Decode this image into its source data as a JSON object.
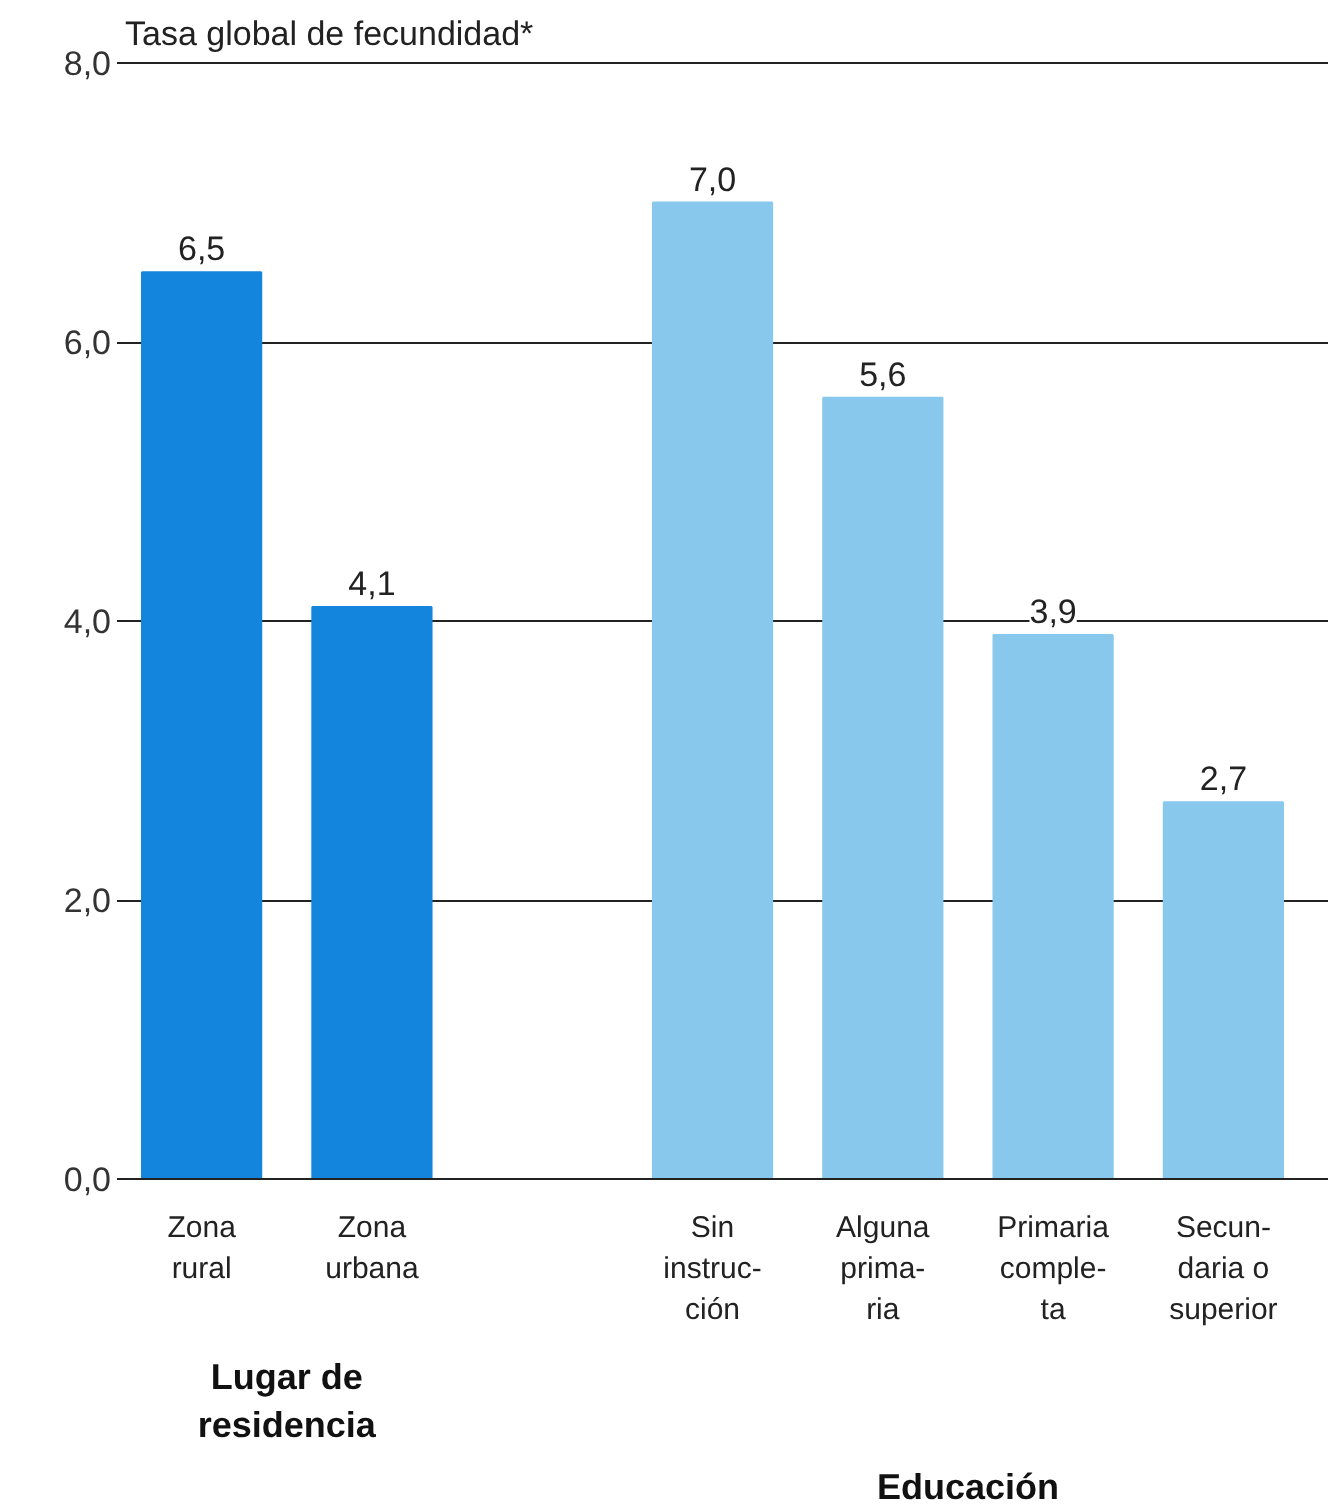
{
  "chart_data": {
    "type": "bar",
    "title": "Tasa global de fecundidad*",
    "categories": [
      "Zona\nrural",
      "Zona\nurbana",
      "Sin\ninstruc-\nción",
      "Alguna\nprima-\nria",
      "Primaria\ncomple-\nta",
      "Secun-\ndaria o\nsuperior"
    ],
    "values": [
      6.5,
      4.1,
      7.0,
      5.6,
      3.9,
      2.7
    ],
    "colors": [
      "#1385dc",
      "#1385dc",
      "#88c8ec",
      "#88c8ec",
      "#88c8ec",
      "#88c8ec"
    ],
    "value_labels": [
      "6,5",
      "4,1",
      "7,0",
      "5,6",
      "3,9",
      "2,7"
    ],
    "ylim": [
      0,
      8
    ],
    "yticks": [
      {
        "value": 0,
        "label": "0,0"
      },
      {
        "value": 2,
        "label": "2,0"
      },
      {
        "value": 4,
        "label": "4,0"
      },
      {
        "value": 6,
        "label": "6,0"
      },
      {
        "value": 8,
        "label": "8,0"
      }
    ],
    "grid": "y",
    "annotations": [
      "Lugar de\nresidencia",
      "Educación"
    ]
  }
}
